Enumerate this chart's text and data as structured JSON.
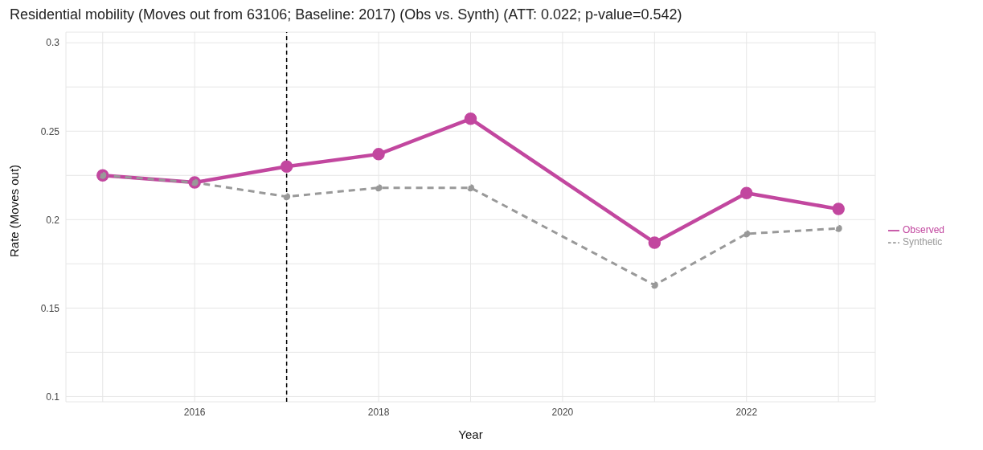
{
  "chart_data": {
    "type": "line",
    "title": "Residential mobility (Moves out from 63106; Baseline: 2017) (Obs vs. Synth) (ATT: 0.022; p-value=0.542)",
    "xlabel": "Year",
    "ylabel": "Rate (Moves out)",
    "x": [
      2015,
      2016,
      2017,
      2018,
      2019,
      2021,
      2022,
      2023
    ],
    "series": [
      {
        "name": "Observed",
        "color": "#c2479f",
        "line_style": "solid",
        "values": [
          0.225,
          0.221,
          0.23,
          0.237,
          0.257,
          0.187,
          0.215,
          0.206
        ]
      },
      {
        "name": "Synthetic",
        "color": "#999999",
        "line_style": "dashed",
        "values": [
          0.225,
          0.221,
          0.213,
          0.218,
          0.218,
          0.163,
          0.192,
          0.195
        ]
      }
    ],
    "xlim": [
      2014.6,
      2023.4
    ],
    "xticks": [
      {
        "value": 2015,
        "label": null
      },
      2016,
      {
        "value": 2017,
        "label": null
      },
      2018,
      {
        "value": 2019,
        "label": null
      },
      2020,
      {
        "value": 2021,
        "label": null
      },
      2022,
      {
        "value": 2023,
        "label": null
      }
    ],
    "ylim": [
      0.097,
      0.306
    ],
    "yticks": [
      0.1,
      {
        "value": 0.125,
        "label": null
      },
      0.15,
      {
        "value": 0.175,
        "label": null
      },
      0.2,
      {
        "value": 0.225,
        "label": null
      },
      0.25,
      {
        "value": 0.275,
        "label": null
      },
      0.3
    ],
    "ref_lines": [
      {
        "axis": "x",
        "value": 2017,
        "color": "#000000",
        "line_style": "dashed"
      }
    ],
    "grid": true,
    "legend": "right",
    "marker": "circle"
  }
}
